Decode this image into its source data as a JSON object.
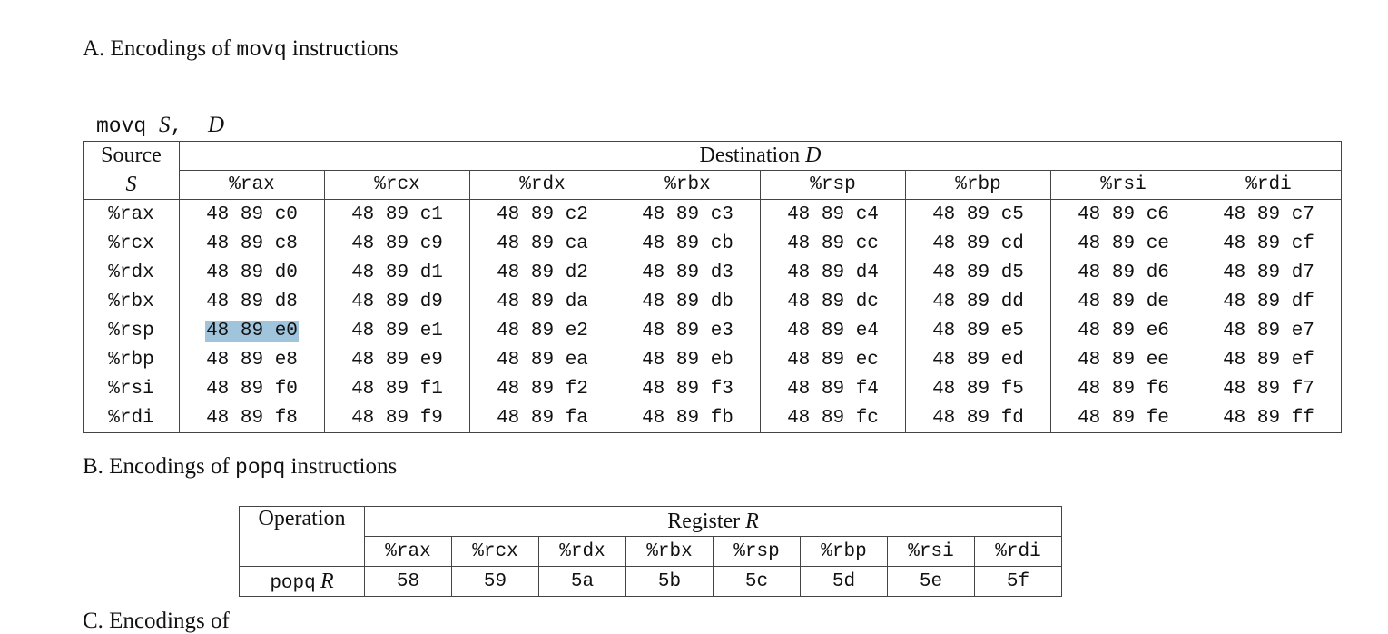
{
  "sectionA": {
    "prefix": "A. Encodings of ",
    "mnemonic": "movq",
    "suffix": " instructions"
  },
  "syntax": {
    "mnemonic": "movq",
    "src": "S",
    "sep": ",",
    "dst": "D"
  },
  "movq_table": {
    "source_header": "Source",
    "source_symbol": "S",
    "dest_header": "Destination ",
    "dest_symbol": "D",
    "columns": [
      "%rax",
      "%rcx",
      "%rdx",
      "%rbx",
      "%rsp",
      "%rbp",
      "%rsi",
      "%rdi"
    ],
    "rows": [
      {
        "src": "%rax",
        "cells": [
          "48 89 c0",
          "48 89 c1",
          "48 89 c2",
          "48 89 c3",
          "48 89 c4",
          "48 89 c5",
          "48 89 c6",
          "48 89 c7"
        ]
      },
      {
        "src": "%rcx",
        "cells": [
          "48 89 c8",
          "48 89 c9",
          "48 89 ca",
          "48 89 cb",
          "48 89 cc",
          "48 89 cd",
          "48 89 ce",
          "48 89 cf"
        ]
      },
      {
        "src": "%rdx",
        "cells": [
          "48 89 d0",
          "48 89 d1",
          "48 89 d2",
          "48 89 d3",
          "48 89 d4",
          "48 89 d5",
          "48 89 d6",
          "48 89 d7"
        ]
      },
      {
        "src": "%rbx",
        "cells": [
          "48 89 d8",
          "48 89 d9",
          "48 89 da",
          "48 89 db",
          "48 89 dc",
          "48 89 dd",
          "48 89 de",
          "48 89 df"
        ]
      },
      {
        "src": "%rsp",
        "cells": [
          "48 89 e0",
          "48 89 e1",
          "48 89 e2",
          "48 89 e3",
          "48 89 e4",
          "48 89 e5",
          "48 89 e6",
          "48 89 e7"
        ]
      },
      {
        "src": "%rbp",
        "cells": [
          "48 89 e8",
          "48 89 e9",
          "48 89 ea",
          "48 89 eb",
          "48 89 ec",
          "48 89 ed",
          "48 89 ee",
          "48 89 ef"
        ]
      },
      {
        "src": "%rsi",
        "cells": [
          "48 89 f0",
          "48 89 f1",
          "48 89 f2",
          "48 89 f3",
          "48 89 f4",
          "48 89 f5",
          "48 89 f6",
          "48 89 f7"
        ]
      },
      {
        "src": "%rdi",
        "cells": [
          "48 89 f8",
          "48 89 f9",
          "48 89 fa",
          "48 89 fb",
          "48 89 fc",
          "48 89 fd",
          "48 89 fe",
          "48 89 ff"
        ]
      }
    ],
    "highlight": {
      "row": "%rsp",
      "column": "%rax",
      "color": "#9fc4dc"
    }
  },
  "sectionB": {
    "prefix": "B. Encodings of ",
    "mnemonic": "popq",
    "suffix": " instructions"
  },
  "popq_table": {
    "op_header": "Operation",
    "reg_header": "Register ",
    "reg_symbol": "R",
    "columns": [
      "%rax",
      "%rcx",
      "%rdx",
      "%rbx",
      "%rsp",
      "%rbp",
      "%rsi",
      "%rdi"
    ],
    "op_mnemonic": "popq",
    "op_symbol": "R",
    "cells": [
      "58",
      "59",
      "5a",
      "5b",
      "5c",
      "5d",
      "5e",
      "5f"
    ]
  },
  "sectionC": {
    "prefix": "C. Encodings of"
  }
}
